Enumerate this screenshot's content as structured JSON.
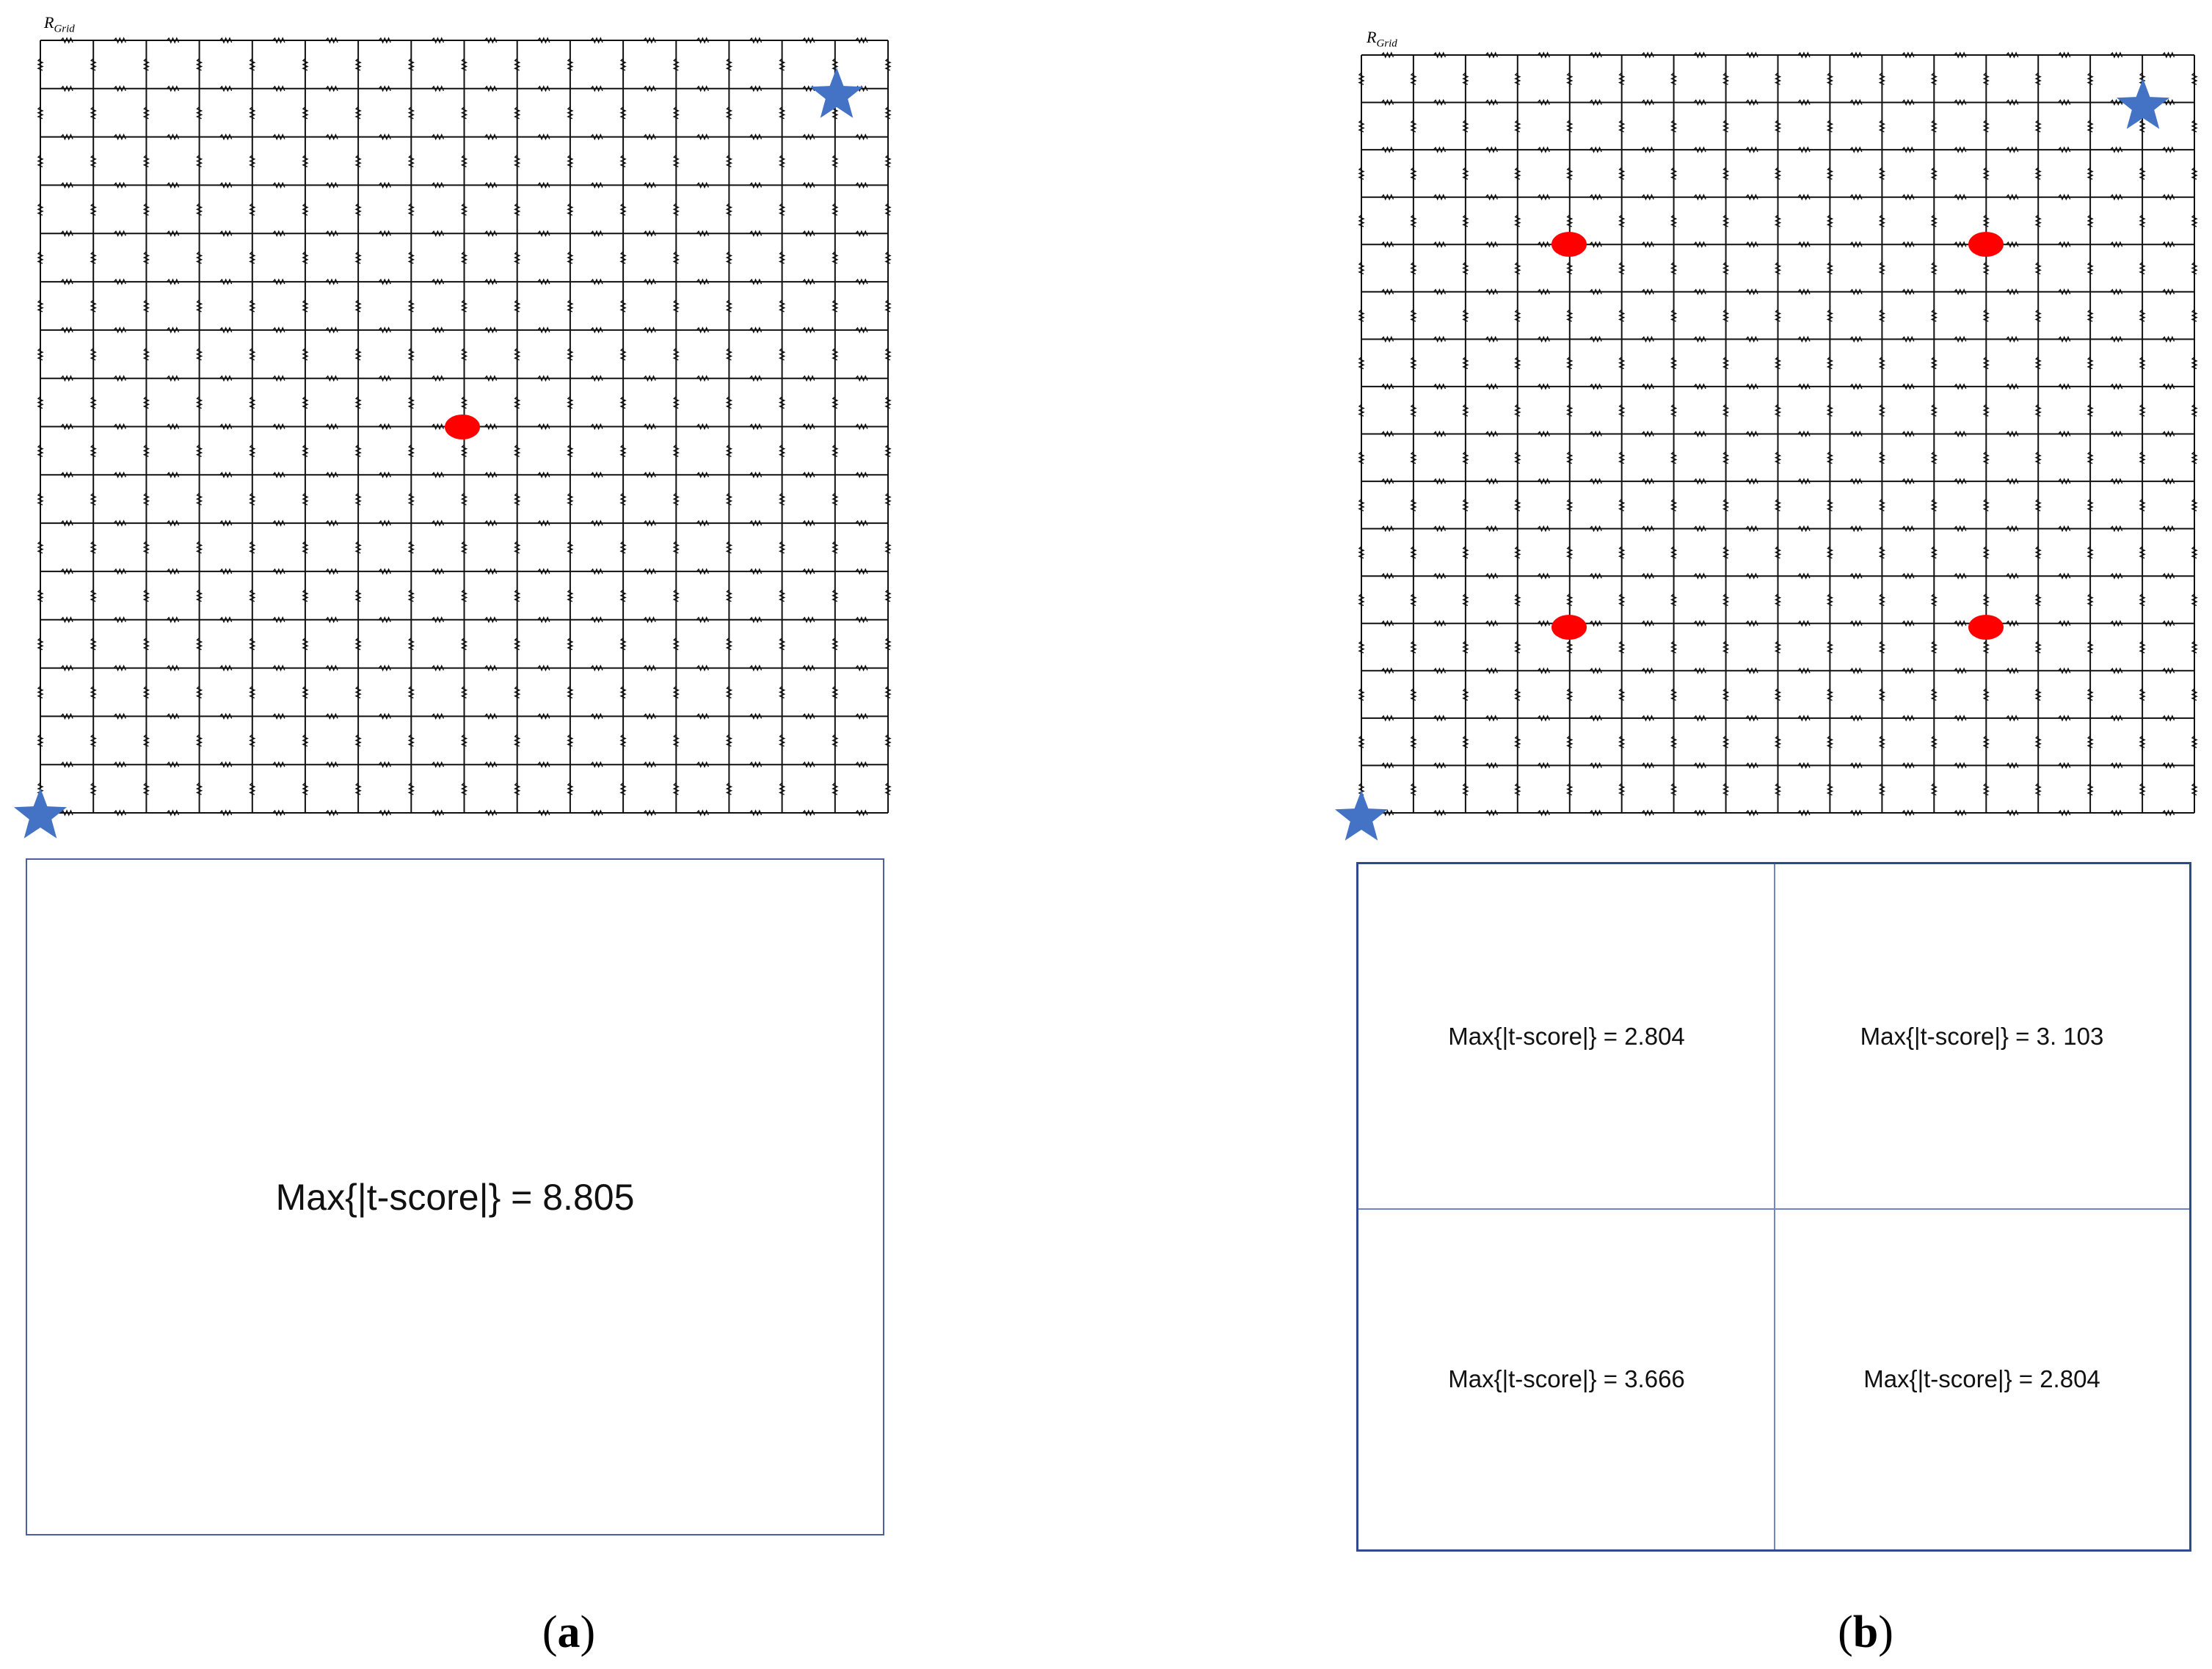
{
  "panels": [
    {
      "id": "a",
      "grid_label_main": "R",
      "grid_label_sub": "Grid",
      "summary_cells": [
        "Max{|t-score|} = 8.805"
      ],
      "caption_open": "(",
      "caption_letter": "a",
      "caption_close": ")",
      "marker_colors": {
        "star": "#4472c4",
        "dot": "#ff0000"
      }
    },
    {
      "id": "b",
      "grid_label_main": "R",
      "grid_label_sub": "Grid",
      "summary_cells": [
        "Max{|t-score|} = 2.804",
        "Max{|t-score|} = 3. 103",
        "Max{|t-score|} = 3.666",
        "Max{|t-score|} = 2.804"
      ],
      "caption_open": "(",
      "caption_letter": "b",
      "caption_close": ")",
      "marker_colors": {
        "star": "#4472c4",
        "dot": "#ff0000"
      }
    }
  ]
}
